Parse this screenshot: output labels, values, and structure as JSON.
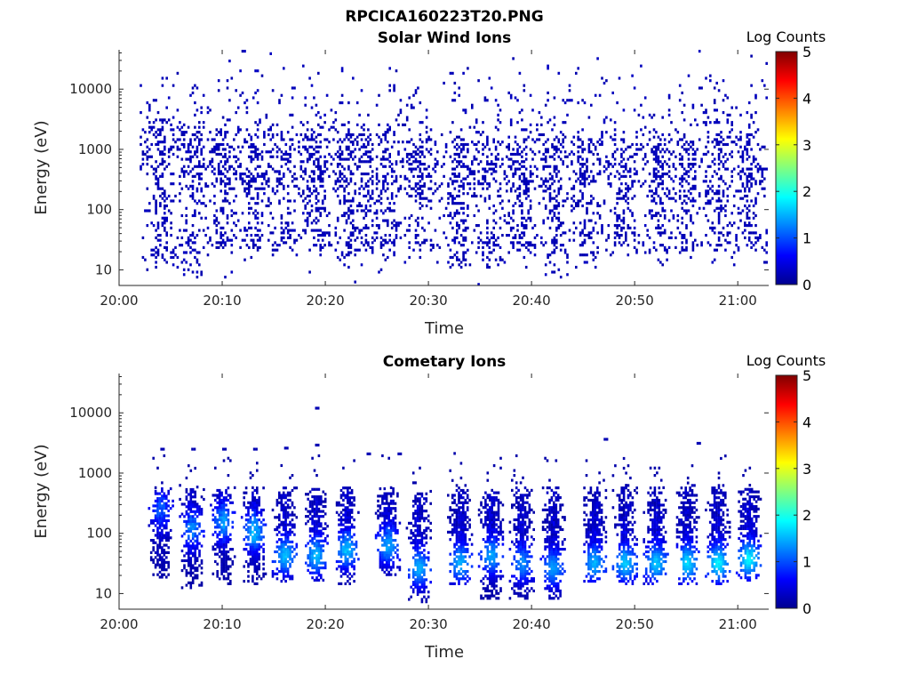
{
  "figure_title": "RPCICA160223T20.PNG",
  "colorscale": {
    "stops": [
      "#00008f",
      "#0000ff",
      "#0080ff",
      "#00ffff",
      "#80ff80",
      "#ffff00",
      "#ff8000",
      "#ff0000",
      "#800000"
    ]
  },
  "chart_data": [
    {
      "type": "heatmap",
      "title": "Solar Wind Ions",
      "xlabel": "Time",
      "ylabel": "Energy (eV)",
      "colorbar_label": "Log Counts",
      "colorbar_range": [
        0,
        5
      ],
      "colorbar_ticks": [
        "0",
        "1",
        "2",
        "3",
        "4",
        "5"
      ],
      "x_range": [
        "20:00",
        "21:03"
      ],
      "y_scale": "log",
      "y_range": [
        5.5,
        45000
      ],
      "x_ticks": [
        "20:00",
        "20:10",
        "20:20",
        "20:30",
        "20:40",
        "20:50",
        "21:00"
      ],
      "y_ticks": [
        "10",
        "100",
        "1000",
        "10000"
      ],
      "energy_ridges_ev": [
        {
          "center": 1000,
          "spread": 0.4,
          "density": 0.11,
          "min_value": 0.15,
          "max_value": 0.3
        },
        {
          "center": 280,
          "spread": 0.35,
          "density": 0.07,
          "min_value": 0.15,
          "max_value": 0.3
        },
        {
          "center": 30,
          "spread": 0.2,
          "density": 0.08,
          "min_value": 0.15,
          "max_value": 0.3
        },
        {
          "center": 7000,
          "spread": 0.3,
          "density": 0.03,
          "min_value": 0.15,
          "max_value": 0.25
        }
      ],
      "bursts": [
        {
          "time": "20:04",
          "energy_range_ev": [
            10,
            3000
          ]
        },
        {
          "time": "20:07",
          "energy_range_ev": [
            7,
            2000
          ]
        },
        {
          "time": "20:10",
          "energy_range_ev": [
            20,
            2000
          ]
        },
        {
          "time": "20:13",
          "energy_range_ev": [
            20,
            2000
          ]
        },
        {
          "time": "20:16",
          "energy_range_ev": [
            20,
            2000
          ]
        },
        {
          "time": "20:19",
          "energy_range_ev": [
            20,
            2000
          ]
        },
        {
          "time": "20:22",
          "energy_range_ev": [
            10,
            2000
          ]
        },
        {
          "time": "20:24",
          "energy_range_ev": [
            20,
            2000
          ]
        },
        {
          "time": "20:26",
          "energy_range_ev": [
            10,
            2000
          ]
        },
        {
          "time": "20:29",
          "energy_range_ev": [
            20,
            1500
          ]
        },
        {
          "time": "20:33",
          "energy_range_ev": [
            10,
            1500
          ]
        },
        {
          "time": "20:36",
          "energy_range_ev": [
            10,
            1500
          ]
        },
        {
          "time": "20:39",
          "energy_range_ev": [
            20,
            1500
          ]
        },
        {
          "time": "20:42",
          "energy_range_ev": [
            8,
            1500
          ]
        },
        {
          "time": "20:45",
          "energy_range_ev": [
            10,
            1500
          ]
        },
        {
          "time": "20:49",
          "energy_range_ev": [
            20,
            1500
          ]
        },
        {
          "time": "20:52",
          "energy_range_ev": [
            20,
            1500
          ]
        },
        {
          "time": "20:55",
          "energy_range_ev": [
            20,
            2000
          ]
        },
        {
          "time": "20:58",
          "energy_range_ev": [
            20,
            2000
          ]
        },
        {
          "time": "21:01",
          "energy_range_ev": [
            20,
            2000
          ]
        }
      ]
    },
    {
      "type": "heatmap",
      "title": "Cometary Ions",
      "xlabel": "Time",
      "ylabel": "Energy (eV)",
      "colorbar_label": "Log Counts",
      "colorbar_range": [
        0,
        5
      ],
      "colorbar_ticks": [
        "0",
        "1",
        "2",
        "3",
        "4",
        "5"
      ],
      "x_range": [
        "20:00",
        "21:03"
      ],
      "y_scale": "log",
      "y_range": [
        5.5,
        45000
      ],
      "x_ticks": [
        "20:00",
        "20:10",
        "20:20",
        "20:30",
        "20:40",
        "20:50",
        "21:00"
      ],
      "y_ticks": [
        "10",
        "100",
        "1000",
        "10000"
      ],
      "bursts": [
        {
          "time": "20:04",
          "energy_range_ev": [
            18,
            550
          ],
          "peak_log_counts": 0.7,
          "peak_energy_ev": 250
        },
        {
          "time": "20:07",
          "energy_range_ev": [
            12,
            600
          ],
          "peak_log_counts": 0.9,
          "peak_energy_ev": 110
        },
        {
          "time": "20:10",
          "energy_range_ev": [
            14,
            550
          ],
          "peak_log_counts": 1.0,
          "peak_energy_ev": 150
        },
        {
          "time": "20:13",
          "energy_range_ev": [
            14,
            550
          ],
          "peak_log_counts": 1.2,
          "peak_energy_ev": 100
        },
        {
          "time": "20:16",
          "energy_range_ev": [
            14,
            550
          ],
          "peak_log_counts": 1.3,
          "peak_energy_ev": 40
        },
        {
          "time": "20:19",
          "energy_range_ev": [
            16,
            550
          ],
          "peak_log_counts": 1.3,
          "peak_energy_ev": 40
        },
        {
          "time": "20:22",
          "energy_range_ev": [
            14,
            550
          ],
          "peak_log_counts": 1.3,
          "peak_energy_ev": 50
        },
        {
          "time": "20:26",
          "energy_range_ev": [
            18,
            550
          ],
          "peak_log_counts": 1.2,
          "peak_energy_ev": 60
        },
        {
          "time": "20:29",
          "energy_range_ev": [
            7,
            500
          ],
          "peak_log_counts": 1.3,
          "peak_energy_ev": 25
        },
        {
          "time": "20:33",
          "energy_range_ev": [
            14,
            600
          ],
          "peak_log_counts": 1.3,
          "peak_energy_ev": 30
        },
        {
          "time": "20:36",
          "energy_range_ev": [
            8,
            500
          ],
          "peak_log_counts": 1.2,
          "peak_energy_ev": 40
        },
        {
          "time": "20:39",
          "energy_range_ev": [
            8,
            550
          ],
          "peak_log_counts": 1.1,
          "peak_energy_ev": 30
        },
        {
          "time": "20:42",
          "energy_range_ev": [
            8,
            550
          ],
          "peak_log_counts": 1.2,
          "peak_energy_ev": 25
        },
        {
          "time": "20:46",
          "energy_range_ev": [
            14,
            550
          ],
          "peak_log_counts": 1.3,
          "peak_energy_ev": 30
        },
        {
          "time": "20:49",
          "energy_range_ev": [
            14,
            600
          ],
          "peak_log_counts": 1.4,
          "peak_energy_ev": 30
        },
        {
          "time": "20:52",
          "energy_range_ev": [
            14,
            550
          ],
          "peak_log_counts": 1.4,
          "peak_energy_ev": 30
        },
        {
          "time": "20:55",
          "energy_range_ev": [
            14,
            600
          ],
          "peak_log_counts": 1.5,
          "peak_energy_ev": 30
        },
        {
          "time": "20:58",
          "energy_range_ev": [
            14,
            600
          ],
          "peak_log_counts": 1.6,
          "peak_energy_ev": 30
        },
        {
          "time": "21:01",
          "energy_range_ev": [
            16,
            550
          ],
          "peak_log_counts": 1.6,
          "peak_energy_ev": 35
        }
      ],
      "isolated_high_energy_points": [
        {
          "time": "20:04",
          "energy_ev": 2400
        },
        {
          "time": "20:07",
          "energy_ev": 2400
        },
        {
          "time": "20:10",
          "energy_ev": 2400
        },
        {
          "time": "20:13",
          "energy_ev": 2400
        },
        {
          "time": "20:16",
          "energy_ev": 2500
        },
        {
          "time": "20:19",
          "energy_ev": 11500
        },
        {
          "time": "20:19",
          "energy_ev": 2800
        },
        {
          "time": "20:24",
          "energy_ev": 2000
        },
        {
          "time": "20:27",
          "energy_ev": 2000
        },
        {
          "time": "20:47",
          "energy_ev": 3500
        },
        {
          "time": "20:56",
          "energy_ev": 3000
        }
      ]
    }
  ]
}
